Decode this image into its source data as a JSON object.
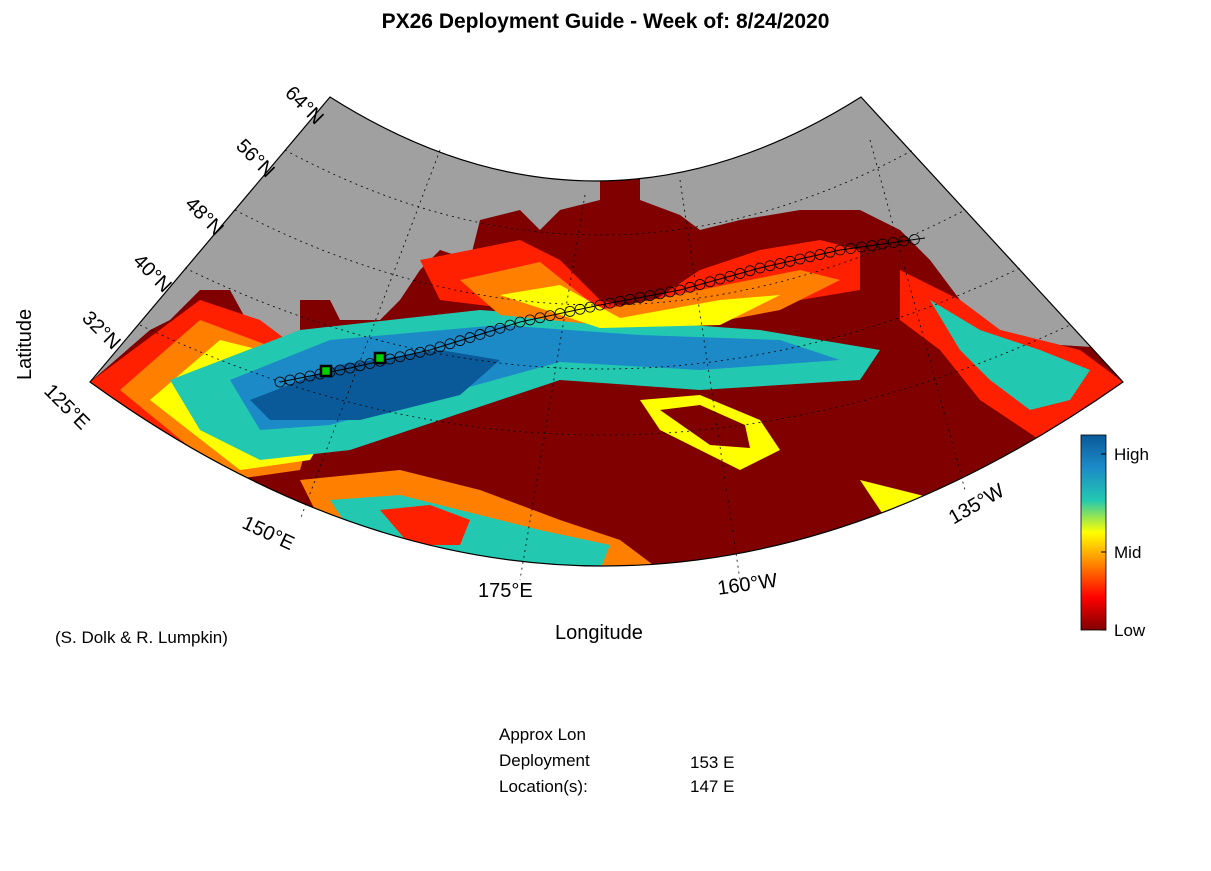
{
  "title": "PX26 Deployment Guide - Week of: 8/24/2020",
  "axis": {
    "xlabel": "Longitude",
    "ylabel": "Latitude"
  },
  "lat_labels": [
    "64°N",
    "56°N",
    "48°N",
    "40°N",
    "32°N"
  ],
  "lon_labels": [
    "125°E",
    "150°E",
    "175°E",
    "160°W",
    "135°W"
  ],
  "colorbar": {
    "high": "High",
    "mid": "Mid",
    "low": "Low",
    "colors": [
      "#800000",
      "#ff0000",
      "#ff8000",
      "#ffff00",
      "#22c8b0",
      "#1d8ac8",
      "#0a5a9a"
    ]
  },
  "credit": "(S. Dolk & R. Lumpkin)",
  "deployment": {
    "heading1": "Approx Lon",
    "heading2": "Deployment",
    "heading3": "Location(s):",
    "locations": [
      "153 E",
      "147 E"
    ]
  },
  "colors": {
    "land": "#a0a0a0",
    "ocean_low": "#800000"
  }
}
